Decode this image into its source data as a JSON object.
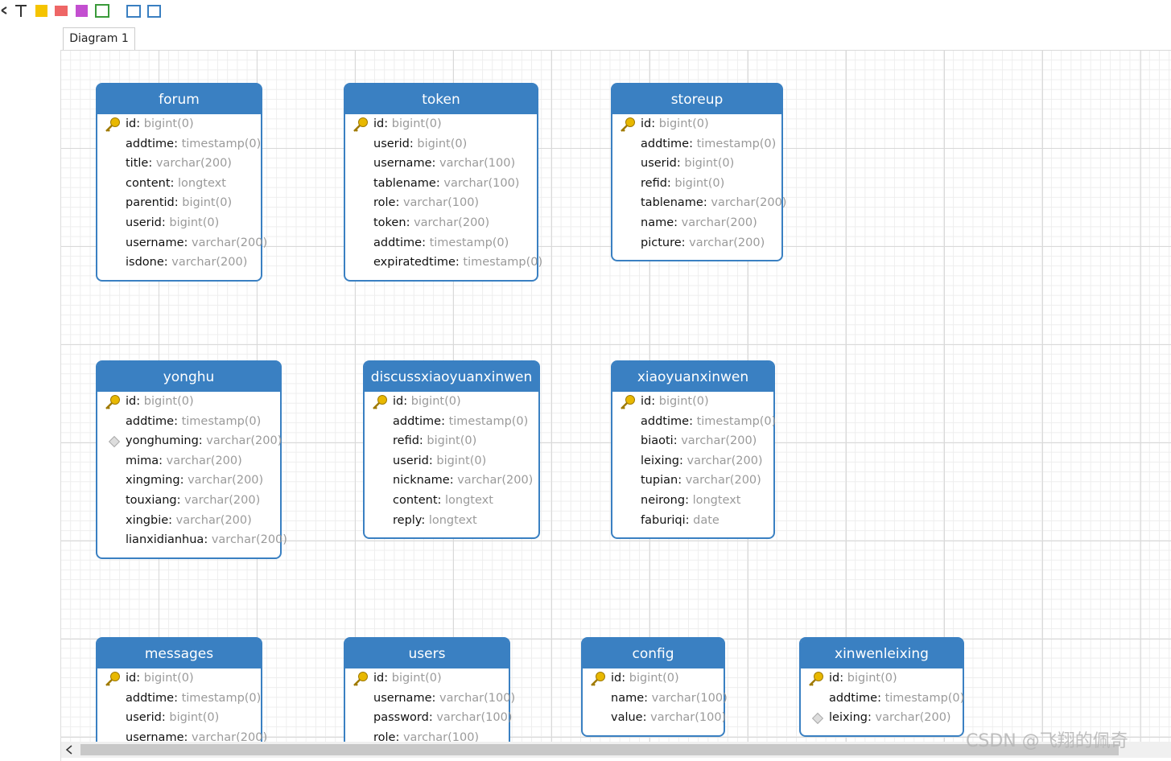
{
  "tab": "Diagram 1",
  "watermark": "CSDN @飞翔的佩奇",
  "tables": [
    {
      "name": "forum",
      "fields": [
        {
          "name": "id",
          "type": "bigint(0)"
        },
        {
          "name": "addtime",
          "type": "timestamp(0)"
        },
        {
          "name": "title",
          "type": "varchar(200)"
        },
        {
          "name": "content",
          "type": "longtext"
        },
        {
          "name": "parentid",
          "type": "bigint(0)"
        },
        {
          "name": "userid",
          "type": "bigint(0)"
        },
        {
          "name": "username",
          "type": "varchar(200)"
        },
        {
          "name": "isdone",
          "type": "varchar(200)"
        }
      ]
    },
    {
      "name": "token",
      "fields": [
        {
          "name": "id",
          "type": "bigint(0)"
        },
        {
          "name": "userid",
          "type": "bigint(0)"
        },
        {
          "name": "username",
          "type": "varchar(100)"
        },
        {
          "name": "tablename",
          "type": "varchar(100)"
        },
        {
          "name": "role",
          "type": "varchar(100)"
        },
        {
          "name": "token",
          "type": "varchar(200)"
        },
        {
          "name": "addtime",
          "type": "timestamp(0)"
        },
        {
          "name": "expiratedtime",
          "type": "timestamp(0)"
        }
      ]
    },
    {
      "name": "storeup",
      "fields": [
        {
          "name": "id",
          "type": "bigint(0)"
        },
        {
          "name": "addtime",
          "type": "timestamp(0)"
        },
        {
          "name": "userid",
          "type": "bigint(0)"
        },
        {
          "name": "refid",
          "type": "bigint(0)"
        },
        {
          "name": "tablename",
          "type": "varchar(200)"
        },
        {
          "name": "name",
          "type": "varchar(200)"
        },
        {
          "name": "picture",
          "type": "varchar(200)"
        }
      ]
    },
    {
      "name": "yonghu",
      "fields": [
        {
          "name": "id",
          "type": "bigint(0)"
        },
        {
          "name": "addtime",
          "type": "timestamp(0)"
        },
        {
          "name": "yonghuming",
          "type": "varchar(200)"
        },
        {
          "name": "mima",
          "type": "varchar(200)"
        },
        {
          "name": "xingming",
          "type": "varchar(200)"
        },
        {
          "name": "touxiang",
          "type": "varchar(200)"
        },
        {
          "name": "xingbie",
          "type": "varchar(200)"
        },
        {
          "name": "lianxidianhua",
          "type": "varchar(200)"
        }
      ]
    },
    {
      "name": "discussxiaoyuanxinwen",
      "fields": [
        {
          "name": "id",
          "type": "bigint(0)"
        },
        {
          "name": "addtime",
          "type": "timestamp(0)"
        },
        {
          "name": "refid",
          "type": "bigint(0)"
        },
        {
          "name": "userid",
          "type": "bigint(0)"
        },
        {
          "name": "nickname",
          "type": "varchar(200)"
        },
        {
          "name": "content",
          "type": "longtext"
        },
        {
          "name": "reply",
          "type": "longtext"
        }
      ]
    },
    {
      "name": "xiaoyuanxinwen",
      "fields": [
        {
          "name": "id",
          "type": "bigint(0)"
        },
        {
          "name": "addtime",
          "type": "timestamp(0)"
        },
        {
          "name": "biaoti",
          "type": "varchar(200)"
        },
        {
          "name": "leixing",
          "type": "varchar(200)"
        },
        {
          "name": "tupian",
          "type": "varchar(200)"
        },
        {
          "name": "neirong",
          "type": "longtext"
        },
        {
          "name": "faburiqi",
          "type": "date"
        }
      ]
    },
    {
      "name": "messages",
      "fields": [
        {
          "name": "id",
          "type": "bigint(0)"
        },
        {
          "name": "addtime",
          "type": "timestamp(0)"
        },
        {
          "name": "userid",
          "type": "bigint(0)"
        },
        {
          "name": "username",
          "type": "varchar(200)"
        }
      ]
    },
    {
      "name": "users",
      "fields": [
        {
          "name": "id",
          "type": "bigint(0)"
        },
        {
          "name": "username",
          "type": "varchar(100)"
        },
        {
          "name": "password",
          "type": "varchar(100)"
        },
        {
          "name": "role",
          "type": "varchar(100)"
        }
      ]
    },
    {
      "name": "config",
      "fields": [
        {
          "name": "id",
          "type": "bigint(0)"
        },
        {
          "name": "name",
          "type": "varchar(100)"
        },
        {
          "name": "value",
          "type": "varchar(100)"
        }
      ]
    },
    {
      "name": "xinwenleixing",
      "fields": [
        {
          "name": "id",
          "type": "bigint(0)"
        },
        {
          "name": "addtime",
          "type": "timestamp(0)"
        },
        {
          "name": "leixing",
          "type": "varchar(200)"
        }
      ]
    }
  ]
}
